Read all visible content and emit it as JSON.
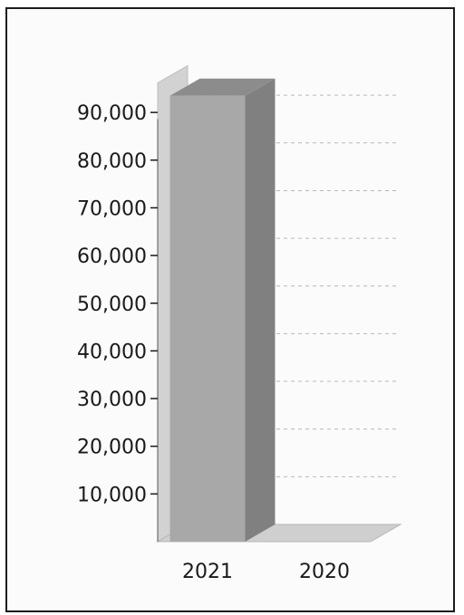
{
  "chart_data": {
    "type": "bar",
    "categories": [
      "2021",
      "2020"
    ],
    "values": [
      93500,
      0
    ],
    "ylim": [
      0,
      100000
    ],
    "yticks": [
      10000,
      20000,
      30000,
      40000,
      50000,
      60000,
      70000,
      80000,
      90000
    ],
    "ytick_labels": [
      "10,000",
      "20,000",
      "30,000",
      "40,000",
      "50,000",
      "60,000",
      "70,000",
      "80,000",
      "90,000"
    ],
    "grid": true,
    "style": "3d",
    "colors": {
      "bar_front": "#a8a8a8",
      "bar_side": "#808080",
      "bar_top": "#8c8c8c",
      "wall": "#d2d2d2",
      "floor": "#cfcfcf",
      "grid": "#b8b8b8",
      "axis": "#555555"
    }
  }
}
